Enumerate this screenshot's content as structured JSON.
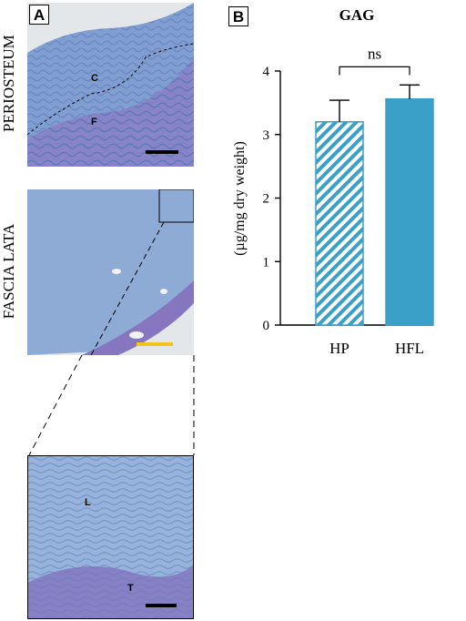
{
  "panel_a": {
    "letter": "A",
    "row_labels": {
      "top": "PERIOSTEUM",
      "bottom": "FASCIA LATA"
    },
    "tissue_labels": {
      "c": "C",
      "f": "F",
      "l": "L",
      "t": "T"
    },
    "scale_bar_colors": {
      "top": "#000000",
      "middle": "#f2c31a",
      "zoom": "#000000"
    }
  },
  "panel_b": {
    "letter": "B"
  },
  "chart_data": {
    "type": "bar",
    "title": "GAG",
    "ylabel": "(µg/mg dry weight)",
    "xlabel": "",
    "categories": [
      "HP",
      "HFL"
    ],
    "values": [
      3.2,
      3.56
    ],
    "errors": [
      0.34,
      0.22
    ],
    "ylim": [
      0,
      4
    ],
    "yticks": [
      0,
      1,
      2,
      3,
      4
    ],
    "bar_styles": [
      "striped",
      "solid"
    ],
    "bar_color": "#3aa0c8",
    "significance": {
      "label": "ns",
      "between": [
        "HP",
        "HFL"
      ]
    },
    "grid": false,
    "legend": "none"
  }
}
